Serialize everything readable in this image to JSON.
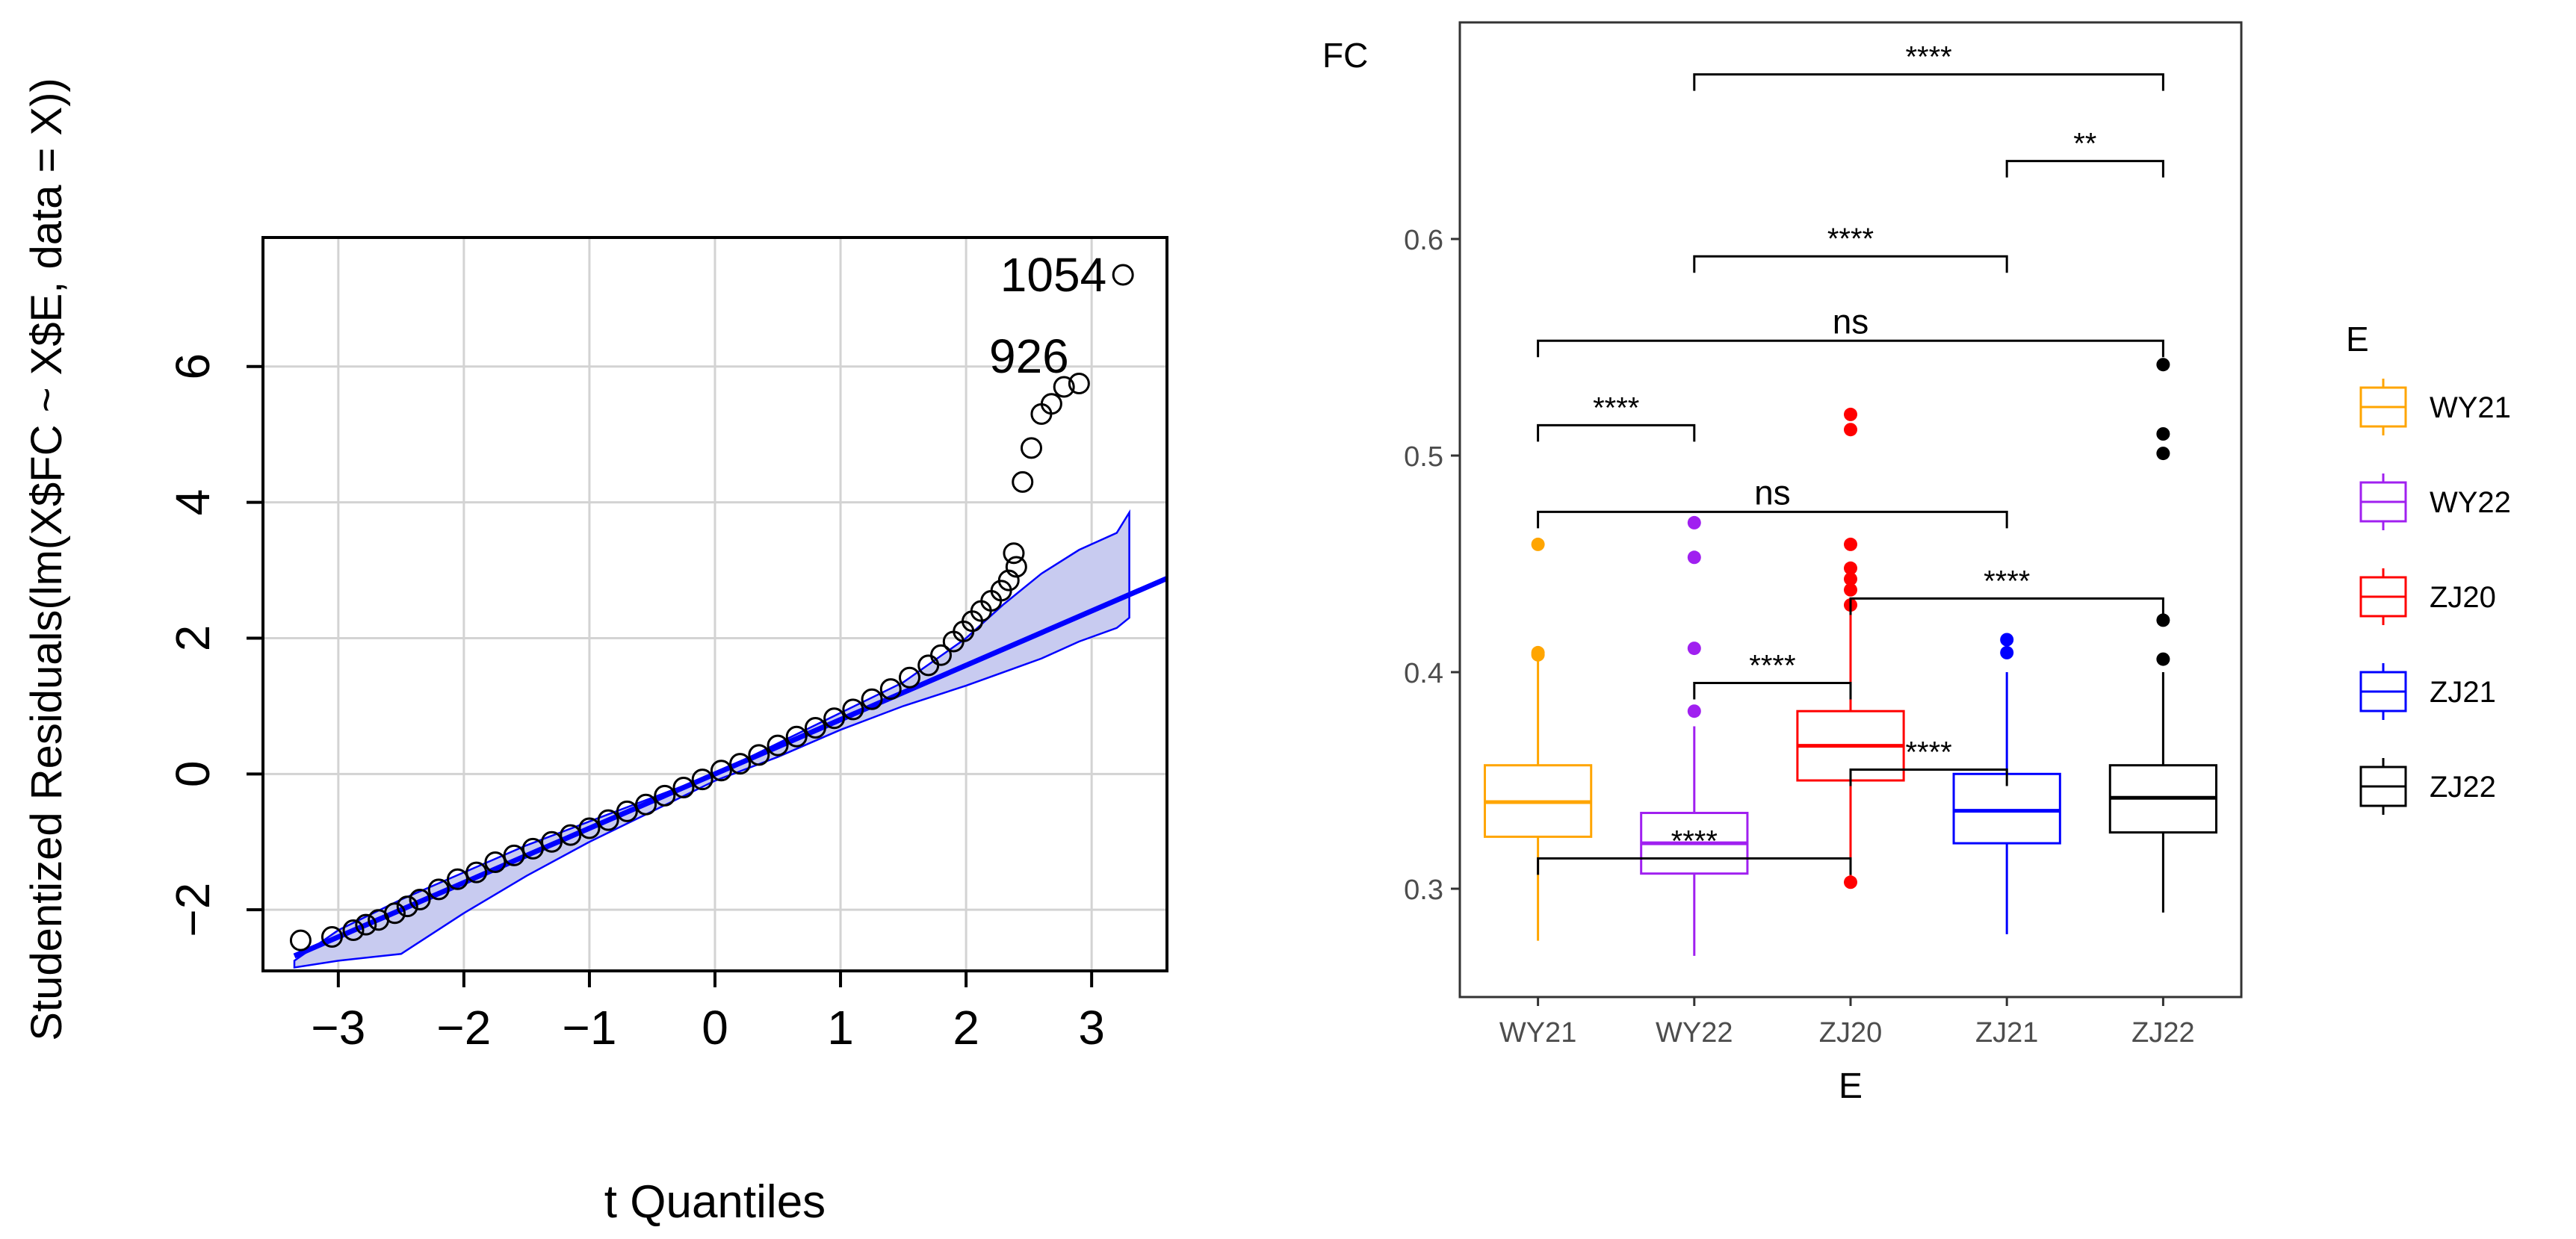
{
  "chart_data": [
    {
      "type": "scatter",
      "subtype": "qq-plot",
      "title": "",
      "xlabel": "t Quantiles",
      "ylabel": "Studentized Residuals(lm(X$FC ~ X$E, data = X))",
      "xlim": [
        -3.6,
        3.6
      ],
      "ylim": [
        -2.9,
        7.9
      ],
      "x_ticks": [
        -3,
        -2,
        -1,
        0,
        1,
        2,
        3
      ],
      "x_tick_labels": [
        "−3",
        "−2",
        "−1",
        "0",
        "1",
        "2",
        "3"
      ],
      "y_ticks": [
        -2,
        0,
        2,
        4,
        6
      ],
      "y_tick_labels": [
        "−2",
        "0",
        "2",
        "4",
        "6"
      ],
      "grid": true,
      "reference_line": {
        "slope": 0.8,
        "intercept": 0.0,
        "color": "#0000ff"
      },
      "confidence_band": {
        "x": [
          -3.35,
          -3.0,
          -2.5,
          -2.0,
          -1.5,
          -1.0,
          -0.5,
          0.0,
          0.5,
          1.0,
          1.5,
          2.0,
          2.3,
          2.6,
          2.9,
          3.2,
          3.3
        ],
        "upper": [
          -2.75,
          -2.3,
          -1.85,
          -1.45,
          -1.05,
          -0.7,
          -0.35,
          0.0,
          0.45,
          0.9,
          1.35,
          2.0,
          2.5,
          2.95,
          3.3,
          3.55,
          3.85
        ],
        "lower": [
          -2.85,
          -2.75,
          -2.65,
          -2.05,
          -1.5,
          -1.0,
          -0.55,
          -0.1,
          0.25,
          0.65,
          1.0,
          1.3,
          1.5,
          1.7,
          1.95,
          2.15,
          2.3
        ],
        "fill": "#c8cbf0",
        "stroke": "#0000ff"
      },
      "points": {
        "x": [
          -3.3,
          -3.05,
          -2.88,
          -2.78,
          -2.68,
          -2.55,
          -2.45,
          -2.35,
          -2.2,
          -2.05,
          -1.9,
          -1.75,
          -1.6,
          -1.45,
          -1.3,
          -1.15,
          -1.0,
          -0.85,
          -0.7,
          -0.55,
          -0.4,
          -0.25,
          -0.1,
          0.05,
          0.2,
          0.35,
          0.5,
          0.65,
          0.8,
          0.95,
          1.1,
          1.25,
          1.4,
          1.55,
          1.7,
          1.8,
          1.9,
          1.98,
          2.05,
          2.12,
          2.2,
          2.28,
          2.34,
          2.4,
          2.38,
          2.45,
          2.52,
          2.6,
          2.68,
          2.78,
          2.9,
          3.25
        ],
        "y": [
          -2.45,
          -2.4,
          -2.3,
          -2.22,
          -2.15,
          -2.05,
          -1.95,
          -1.85,
          -1.7,
          -1.55,
          -1.45,
          -1.3,
          -1.2,
          -1.1,
          -1.0,
          -0.9,
          -0.8,
          -0.68,
          -0.55,
          -0.45,
          -0.32,
          -0.2,
          -0.08,
          0.05,
          0.15,
          0.28,
          0.42,
          0.55,
          0.68,
          0.82,
          0.95,
          1.1,
          1.25,
          1.42,
          1.6,
          1.75,
          1.95,
          2.1,
          2.25,
          2.4,
          2.55,
          2.7,
          2.85,
          3.05,
          3.25,
          4.3,
          4.8,
          5.3,
          5.45,
          5.7,
          5.75,
          7.35
        ]
      },
      "outlier_labels": [
        {
          "label": "1054",
          "x": 3.25,
          "y": 7.35
        },
        {
          "label": "926",
          "x": 2.95,
          "y": 6.15
        }
      ]
    },
    {
      "type": "box",
      "title": "",
      "xlabel": "E",
      "ylabel": "FC",
      "ylim": [
        0.25,
        0.7
      ],
      "y_ticks": [
        0.3,
        0.4,
        0.5,
        0.6
      ],
      "y_tick_labels": [
        "0.3",
        "0.4",
        "0.5",
        "0.6"
      ],
      "categories": [
        "WY21",
        "WY22",
        "ZJ20",
        "ZJ21",
        "ZJ22"
      ],
      "legend": {
        "title": "E",
        "position": "right",
        "entries": [
          "WY21",
          "WY22",
          "ZJ20",
          "ZJ21",
          "ZJ22"
        ]
      },
      "series": [
        {
          "name": "WY21",
          "color": "#ffa500",
          "min": 0.276,
          "q1": 0.324,
          "median": 0.34,
          "q3": 0.357,
          "max": 0.405,
          "outliers": [
            0.408,
            0.409,
            0.459
          ]
        },
        {
          "name": "WY22",
          "color": "#a020f0",
          "min": 0.269,
          "q1": 0.307,
          "median": 0.321,
          "q3": 0.335,
          "max": 0.375,
          "outliers": [
            0.382,
            0.411,
            0.453,
            0.469
          ]
        },
        {
          "name": "ZJ20",
          "color": "#ff0000",
          "min": 0.303,
          "q1": 0.35,
          "median": 0.366,
          "q3": 0.382,
          "max": 0.428,
          "outliers": [
            0.303,
            0.431,
            0.438,
            0.443,
            0.448,
            0.459,
            0.512,
            0.519
          ]
        },
        {
          "name": "ZJ21",
          "color": "#0000ff",
          "min": 0.279,
          "q1": 0.321,
          "median": 0.336,
          "q3": 0.353,
          "max": 0.4,
          "outliers": [
            0.409,
            0.415
          ]
        },
        {
          "name": "ZJ22",
          "color": "#000000",
          "min": 0.289,
          "q1": 0.326,
          "median": 0.342,
          "q3": 0.357,
          "max": 0.4,
          "outliers": [
            0.406,
            0.424,
            0.501,
            0.51,
            0.542
          ]
        }
      ],
      "comparisons": [
        {
          "from": "WY22",
          "to": "ZJ22",
          "y": 0.676,
          "label": "****"
        },
        {
          "from": "ZJ21",
          "to": "ZJ22",
          "y": 0.636,
          "label": "**"
        },
        {
          "from": "WY22",
          "to": "ZJ21",
          "y": 0.592,
          "label": "****"
        },
        {
          "from": "WY21",
          "to": "ZJ22",
          "y": 0.553,
          "label": "ns"
        },
        {
          "from": "WY21",
          "to": "WY22",
          "y": 0.514,
          "label": "****"
        },
        {
          "from": "WY21",
          "to": "ZJ21",
          "y": 0.474,
          "label": "ns"
        },
        {
          "from": "ZJ20",
          "to": "ZJ22",
          "y": 0.434,
          "label": "****"
        },
        {
          "from": "WY22",
          "to": "ZJ20",
          "y": 0.395,
          "label": "****"
        },
        {
          "from": "ZJ20",
          "to": "ZJ21",
          "y": 0.355,
          "label": "****"
        },
        {
          "from": "WY21",
          "to": "ZJ20",
          "y": 0.314,
          "label": "****"
        }
      ]
    }
  ]
}
